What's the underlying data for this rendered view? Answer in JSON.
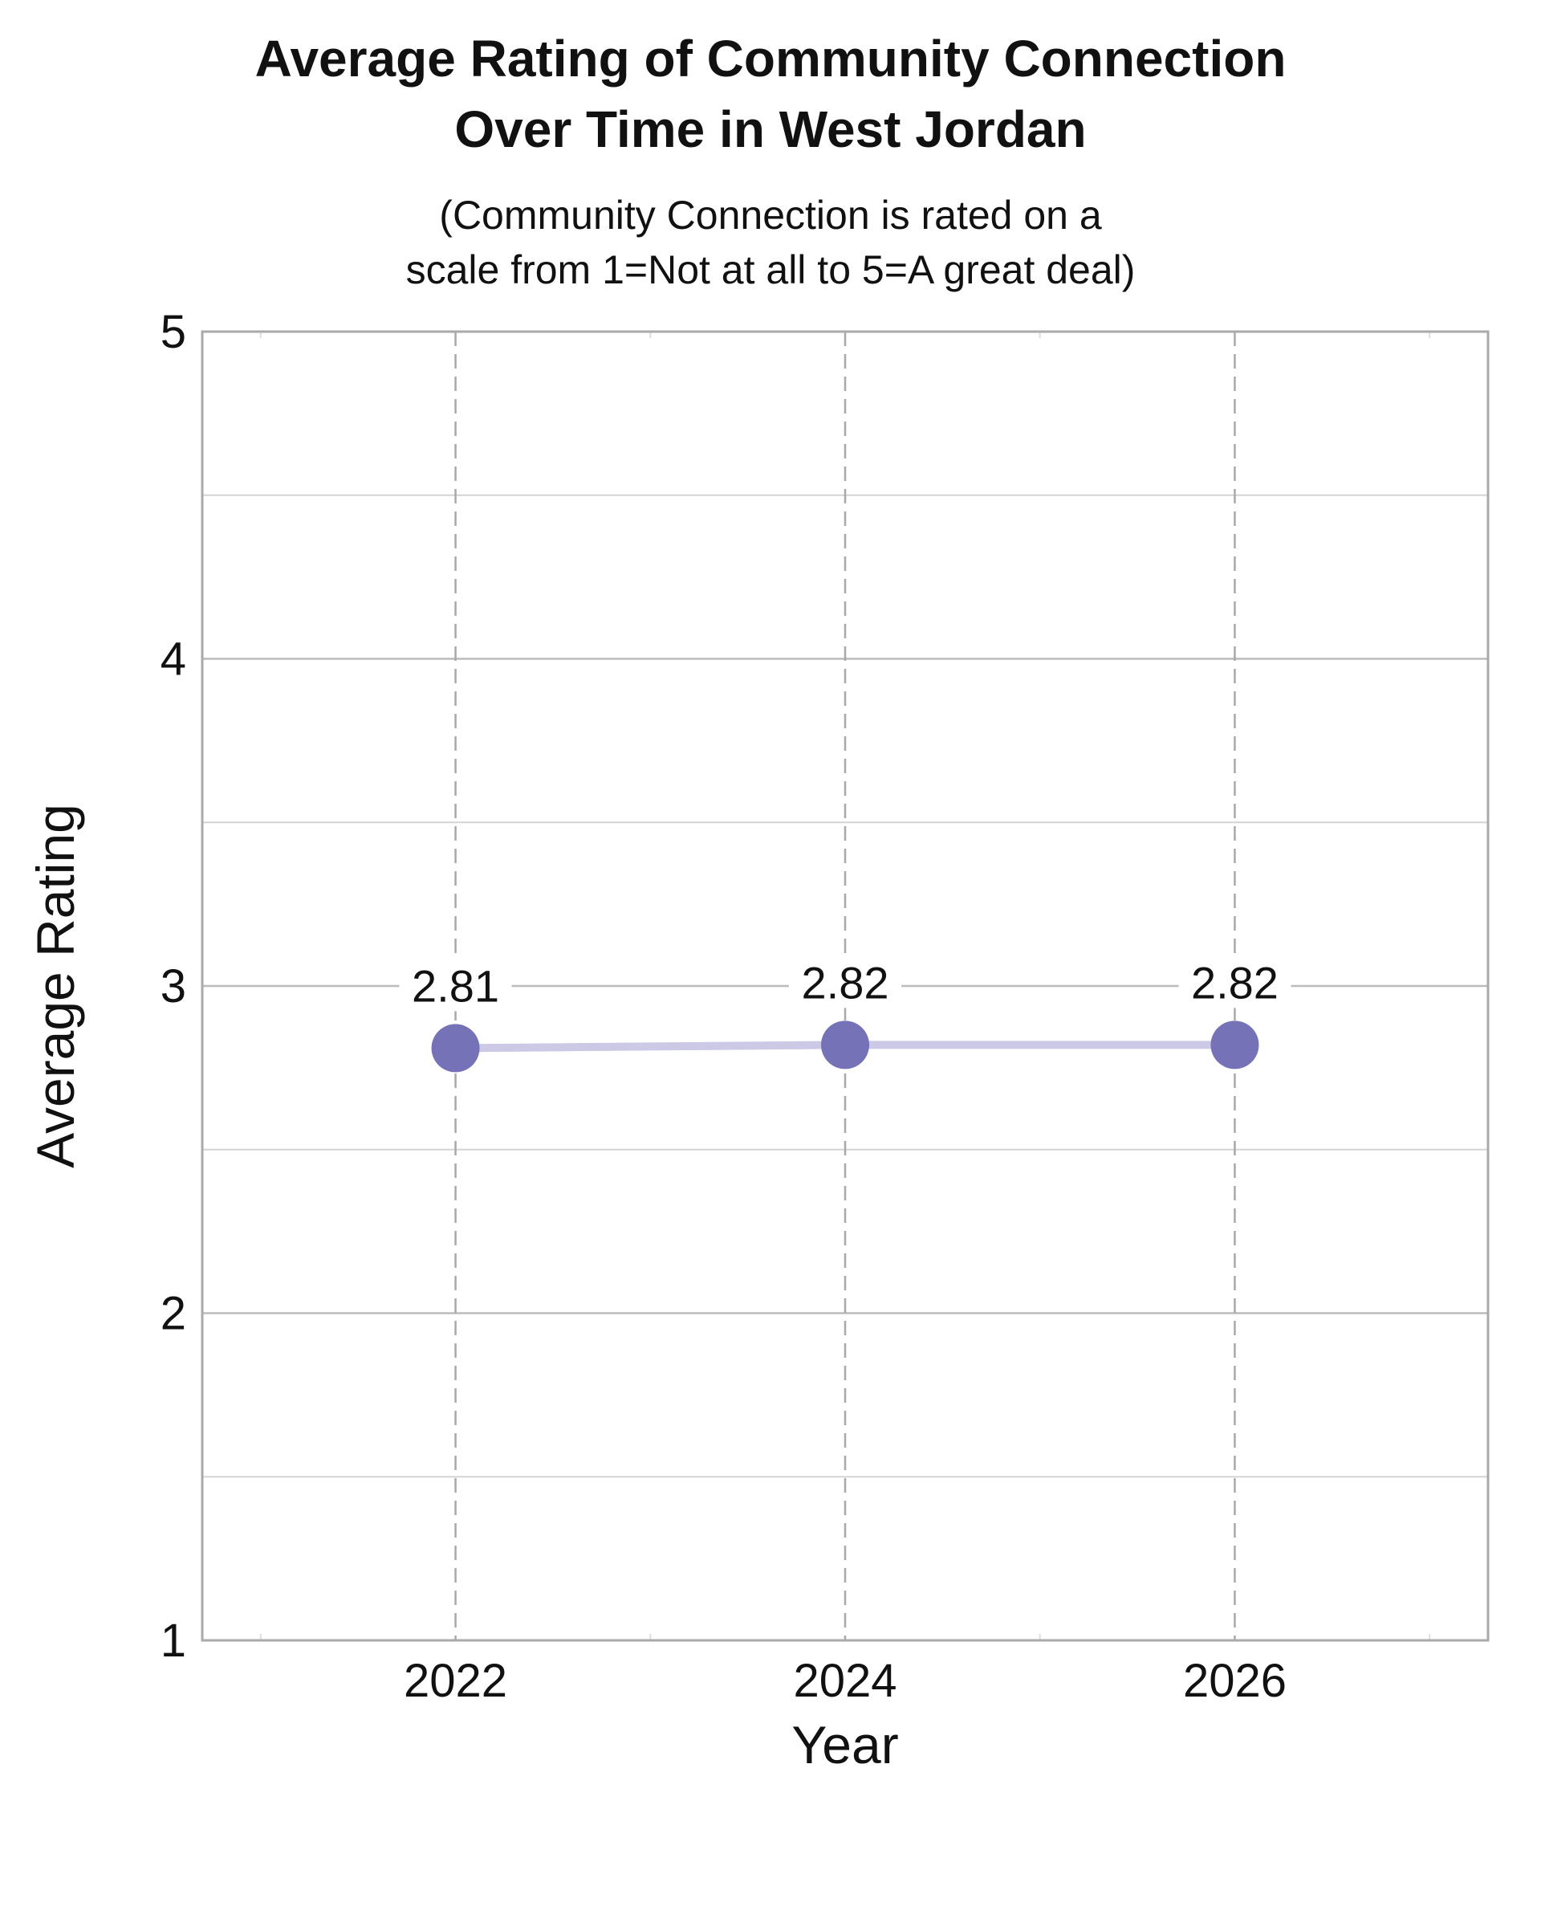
{
  "chart_data": {
    "type": "line",
    "title_line1": "Average Rating of Community Connection",
    "title_line2": "Over Time in West Jordan",
    "subtitle_line1": "(Community Connection is rated on a",
    "subtitle_line2": "scale from 1=Not at all to 5=A great deal)",
    "xlabel": "Year",
    "ylabel": "Average Rating",
    "x": [
      2022,
      2024,
      2026
    ],
    "x_tick_labels": [
      "2022",
      "2024",
      "2026"
    ],
    "y": [
      2.81,
      2.82,
      2.82
    ],
    "data_labels": [
      "2.81",
      "2.82",
      "2.82"
    ],
    "y_ticks": [
      1,
      2,
      3,
      4,
      5
    ],
    "y_tick_labels": [
      "1",
      "2",
      "3",
      "4",
      "5"
    ],
    "ylim": [
      1,
      5
    ],
    "xlim": [
      2020.7,
      2027.3
    ],
    "grid": true,
    "marker_color": "#7672b8",
    "line_color": "#cbc9e6",
    "grid_color": "#bbbbbb",
    "frame_color": "#aaaaaa"
  }
}
